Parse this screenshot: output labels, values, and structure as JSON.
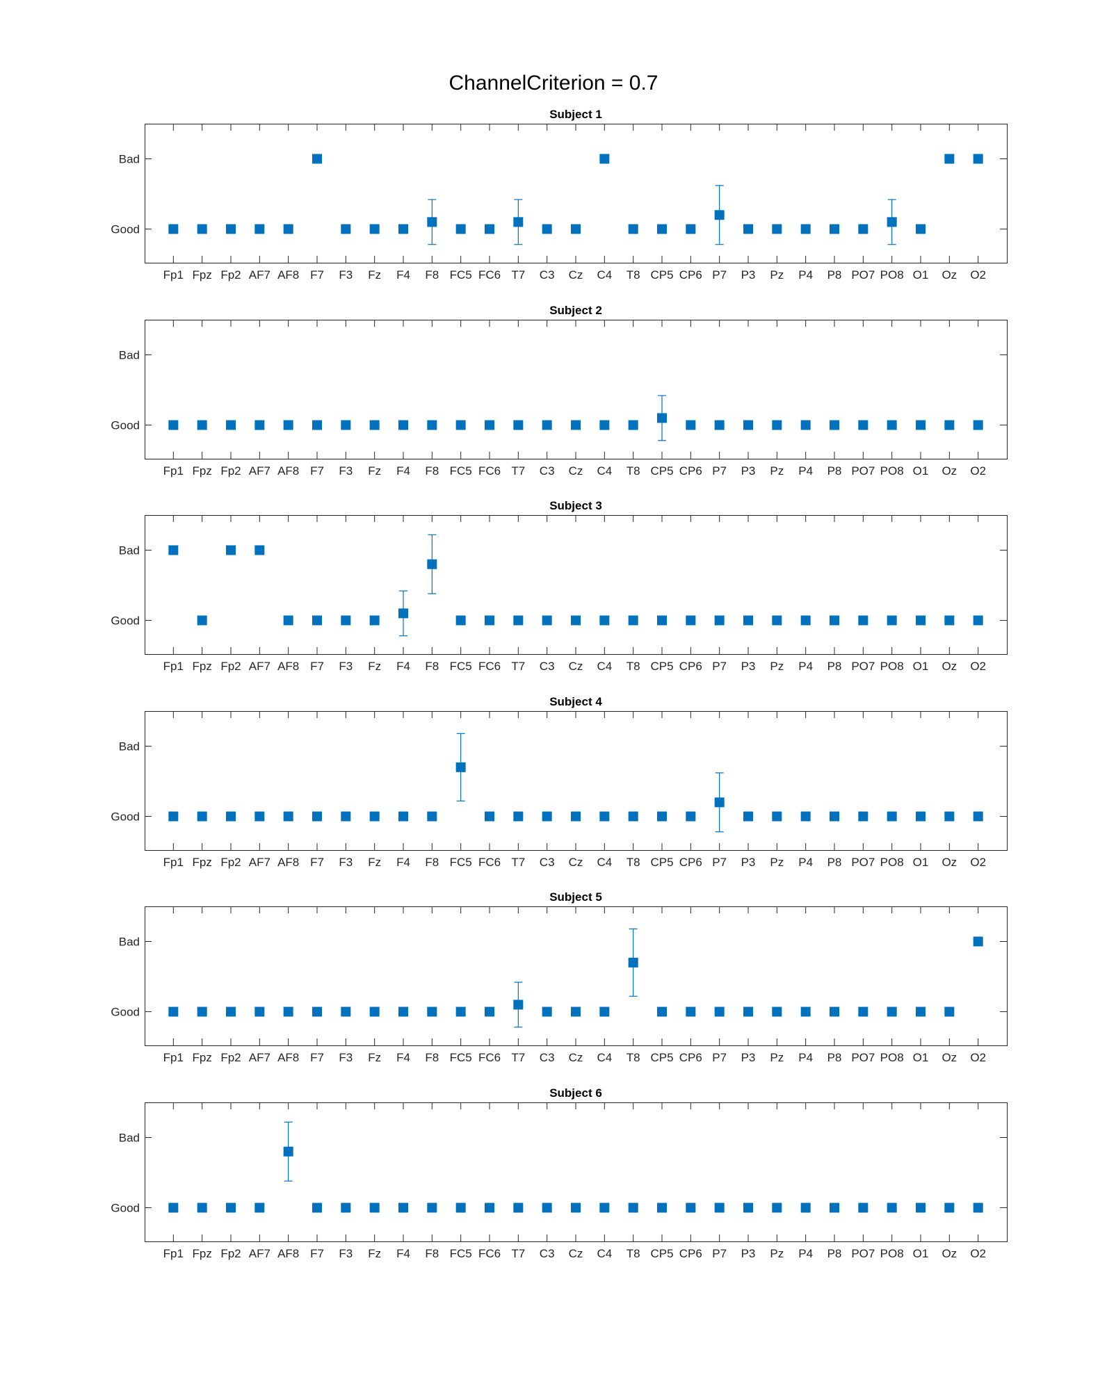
{
  "figure": {
    "title": "ChannelCriterion = 0.7"
  },
  "colors": {
    "marker": "#0072BD",
    "axis": "#262626"
  },
  "chart_data": [
    {
      "type": "scatter",
      "title": "Subject 1",
      "categories": [
        "Fp1",
        "Fpz",
        "Fp2",
        "AF7",
        "AF8",
        "F7",
        "F3",
        "Fz",
        "F4",
        "F8",
        "FC5",
        "FC6",
        "T7",
        "C3",
        "Cz",
        "C4",
        "T8",
        "CP5",
        "CP6",
        "P7",
        "P3",
        "Pz",
        "P4",
        "P8",
        "PO7",
        "PO8",
        "O1",
        "Oz",
        "O2"
      ],
      "y_ticks": [
        {
          "value": 0,
          "label": "Good"
        },
        {
          "value": 1,
          "label": "Bad"
        }
      ],
      "ylim": [
        -0.48,
        1.5
      ],
      "values": [
        0,
        0,
        0,
        0,
        0,
        1,
        0,
        0,
        0,
        0.1,
        0,
        0,
        0.1,
        0,
        0,
        1,
        0,
        0,
        0,
        0.2,
        0,
        0,
        0,
        0,
        0,
        0.1,
        0,
        1,
        1
      ],
      "errors": [
        0,
        0,
        0,
        0,
        0,
        0,
        0,
        0,
        0,
        0.32,
        0,
        0,
        0.32,
        0,
        0,
        0,
        0,
        0,
        0,
        0.42,
        0,
        0,
        0,
        0,
        0,
        0.32,
        0,
        0,
        0
      ],
      "grid": false
    },
    {
      "type": "scatter",
      "title": "Subject 2",
      "categories": [
        "Fp1",
        "Fpz",
        "Fp2",
        "AF7",
        "AF8",
        "F7",
        "F3",
        "Fz",
        "F4",
        "F8",
        "FC5",
        "FC6",
        "T7",
        "C3",
        "Cz",
        "C4",
        "T8",
        "CP5",
        "CP6",
        "P7",
        "P3",
        "Pz",
        "P4",
        "P8",
        "PO7",
        "PO8",
        "O1",
        "Oz",
        "O2"
      ],
      "y_ticks": [
        {
          "value": 0,
          "label": "Good"
        },
        {
          "value": 1,
          "label": "Bad"
        }
      ],
      "ylim": [
        -0.48,
        1.5
      ],
      "values": [
        0,
        0,
        0,
        0,
        0,
        0,
        0,
        0,
        0,
        0,
        0,
        0,
        0,
        0,
        0,
        0,
        0,
        0.1,
        0,
        0,
        0,
        0,
        0,
        0,
        0,
        0,
        0,
        0,
        0
      ],
      "errors": [
        0,
        0,
        0,
        0,
        0,
        0,
        0,
        0,
        0,
        0,
        0,
        0,
        0,
        0,
        0,
        0,
        0,
        0.32,
        0,
        0,
        0,
        0,
        0,
        0,
        0,
        0,
        0,
        0,
        0
      ],
      "grid": false
    },
    {
      "type": "scatter",
      "title": "Subject 3",
      "categories": [
        "Fp1",
        "Fpz",
        "Fp2",
        "AF7",
        "AF8",
        "F7",
        "F3",
        "Fz",
        "F4",
        "F8",
        "FC5",
        "FC6",
        "T7",
        "C3",
        "Cz",
        "C4",
        "T8",
        "CP5",
        "CP6",
        "P7",
        "P3",
        "Pz",
        "P4",
        "P8",
        "PO7",
        "PO8",
        "O1",
        "Oz",
        "O2"
      ],
      "y_ticks": [
        {
          "value": 0,
          "label": "Good"
        },
        {
          "value": 1,
          "label": "Bad"
        }
      ],
      "ylim": [
        -0.48,
        1.5
      ],
      "values": [
        1,
        0,
        1,
        1,
        0,
        0,
        0,
        0,
        0.1,
        0.8,
        0,
        0,
        0,
        0,
        0,
        0,
        0,
        0,
        0,
        0,
        0,
        0,
        0,
        0,
        0,
        0,
        0,
        0,
        0
      ],
      "errors": [
        0,
        0,
        0,
        0,
        0,
        0,
        0,
        0,
        0.32,
        0.42,
        0,
        0,
        0,
        0,
        0,
        0,
        0,
        0,
        0,
        0,
        0,
        0,
        0,
        0,
        0,
        0,
        0,
        0,
        0
      ],
      "grid": false
    },
    {
      "type": "scatter",
      "title": "Subject 4",
      "categories": [
        "Fp1",
        "Fpz",
        "Fp2",
        "AF7",
        "AF8",
        "F7",
        "F3",
        "Fz",
        "F4",
        "F8",
        "FC5",
        "FC6",
        "T7",
        "C3",
        "Cz",
        "C4",
        "T8",
        "CP5",
        "CP6",
        "P7",
        "P3",
        "Pz",
        "P4",
        "P8",
        "PO7",
        "PO8",
        "O1",
        "Oz",
        "O2"
      ],
      "y_ticks": [
        {
          "value": 0,
          "label": "Good"
        },
        {
          "value": 1,
          "label": "Bad"
        }
      ],
      "ylim": [
        -0.48,
        1.5
      ],
      "values": [
        0,
        0,
        0,
        0,
        0,
        0,
        0,
        0,
        0,
        0,
        0.7,
        0,
        0,
        0,
        0,
        0,
        0,
        0,
        0,
        0.2,
        0,
        0,
        0,
        0,
        0,
        0,
        0,
        0,
        0
      ],
      "errors": [
        0,
        0,
        0,
        0,
        0,
        0,
        0,
        0,
        0,
        0,
        0.48,
        0,
        0,
        0,
        0,
        0,
        0,
        0,
        0,
        0.42,
        0,
        0,
        0,
        0,
        0,
        0,
        0,
        0,
        0
      ],
      "grid": false
    },
    {
      "type": "scatter",
      "title": "Subject 5",
      "categories": [
        "Fp1",
        "Fpz",
        "Fp2",
        "AF7",
        "AF8",
        "F7",
        "F3",
        "Fz",
        "F4",
        "F8",
        "FC5",
        "FC6",
        "T7",
        "C3",
        "Cz",
        "C4",
        "T8",
        "CP5",
        "CP6",
        "P7",
        "P3",
        "Pz",
        "P4",
        "P8",
        "PO7",
        "PO8",
        "O1",
        "Oz",
        "O2"
      ],
      "y_ticks": [
        {
          "value": 0,
          "label": "Good"
        },
        {
          "value": 1,
          "label": "Bad"
        }
      ],
      "ylim": [
        -0.48,
        1.5
      ],
      "values": [
        0,
        0,
        0,
        0,
        0,
        0,
        0,
        0,
        0,
        0,
        0,
        0,
        0.1,
        0,
        0,
        0,
        0.7,
        0,
        0,
        0,
        0,
        0,
        0,
        0,
        0,
        0,
        0,
        0,
        1
      ],
      "errors": [
        0,
        0,
        0,
        0,
        0,
        0,
        0,
        0,
        0,
        0,
        0,
        0,
        0.32,
        0,
        0,
        0,
        0.48,
        0,
        0,
        0,
        0,
        0,
        0,
        0,
        0,
        0,
        0,
        0,
        0
      ],
      "grid": false
    },
    {
      "type": "scatter",
      "title": "Subject 6",
      "categories": [
        "Fp1",
        "Fpz",
        "Fp2",
        "AF7",
        "AF8",
        "F7",
        "F3",
        "Fz",
        "F4",
        "F8",
        "FC5",
        "FC6",
        "T7",
        "C3",
        "Cz",
        "C4",
        "T8",
        "CP5",
        "CP6",
        "P7",
        "P3",
        "Pz",
        "P4",
        "P8",
        "PO7",
        "PO8",
        "O1",
        "Oz",
        "O2"
      ],
      "y_ticks": [
        {
          "value": 0,
          "label": "Good"
        },
        {
          "value": 1,
          "label": "Bad"
        }
      ],
      "ylim": [
        -0.48,
        1.5
      ],
      "values": [
        0,
        0,
        0,
        0,
        0.8,
        0,
        0,
        0,
        0,
        0,
        0,
        0,
        0,
        0,
        0,
        0,
        0,
        0,
        0,
        0,
        0,
        0,
        0,
        0,
        0,
        0,
        0,
        0,
        0
      ],
      "errors": [
        0,
        0,
        0,
        0,
        0.42,
        0,
        0,
        0,
        0,
        0,
        0,
        0,
        0,
        0,
        0,
        0,
        0,
        0,
        0,
        0,
        0,
        0,
        0,
        0,
        0,
        0,
        0,
        0,
        0
      ],
      "grid": false
    }
  ]
}
